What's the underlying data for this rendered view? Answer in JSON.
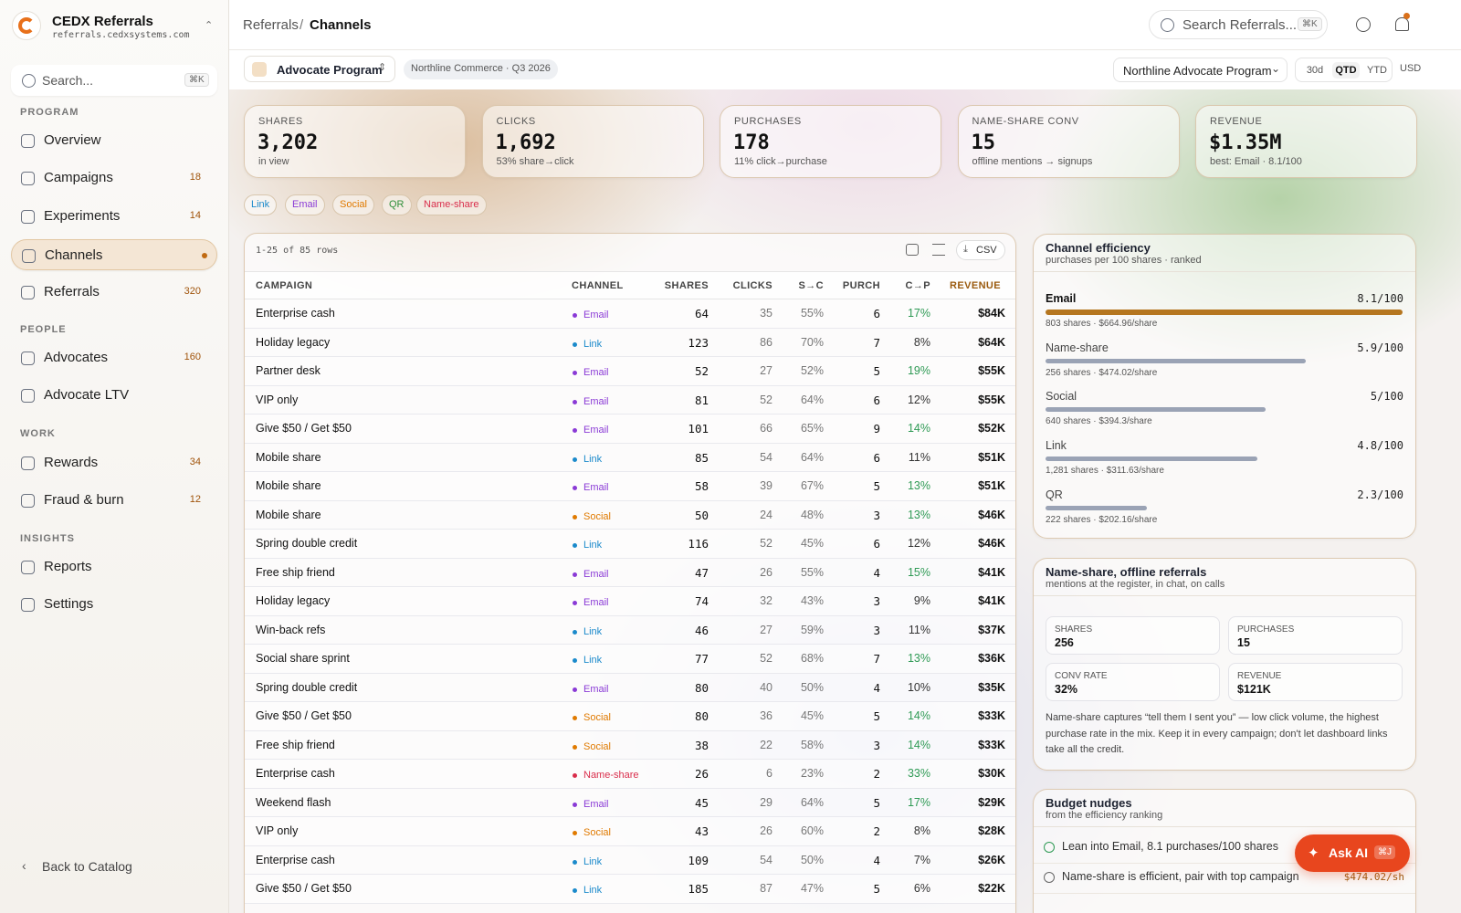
{
  "sidebar": {
    "brand": "CEDX Referrals",
    "domain": "referrals.cedxsystems.com",
    "search": "Search...",
    "search_key": "⌘K",
    "sections": [
      {
        "label": "PROGRAM",
        "items": [
          {
            "label": "Overview"
          },
          {
            "label": "Campaigns",
            "badge": 18
          },
          {
            "label": "Experiments",
            "badge": 14
          },
          {
            "label": "Channels",
            "active": true
          },
          {
            "label": "Referrals",
            "badge": 320
          }
        ]
      },
      {
        "label": "PEOPLE",
        "items": [
          {
            "label": "Advocates",
            "badge": 160
          },
          {
            "label": "Advocate LTV"
          }
        ]
      },
      {
        "label": "WORK",
        "items": [
          {
            "label": "Rewards",
            "badge": 34
          },
          {
            "label": "Fraud & burn",
            "badge": 12
          }
        ]
      },
      {
        "label": "INSIGHTS",
        "items": [
          {
            "label": "Reports"
          },
          {
            "label": "Settings"
          }
        ]
      }
    ],
    "back": "Back to Catalog"
  },
  "header": {
    "breadcrumb": [
      "Referrals",
      "Channels"
    ],
    "separator": "/",
    "search": "Search Referrals...",
    "search_key": "⌘K"
  },
  "toolbar": {
    "program": "Advocate Program",
    "context": "Northline Commerce · Q3 2026",
    "program_select": "Northline Advocate Program",
    "ranges": [
      "30d",
      "QTD",
      "YTD"
    ],
    "active_range": "QTD",
    "currency": "USD"
  },
  "kpis": [
    {
      "label": "SHARES",
      "value": "3,202",
      "sub": "in view"
    },
    {
      "label": "CLICKS",
      "value": "1,692",
      "sub": "53% share→click"
    },
    {
      "label": "PURCHASES",
      "value": "178",
      "sub": "11% click→purchase"
    },
    {
      "label": "NAME-SHARE CONV",
      "value": "15",
      "sub": "offline mentions → signups"
    },
    {
      "label": "REVENUE",
      "value": "$1.35M",
      "sub": "best: Email · 8.1/100"
    }
  ],
  "channels": [
    {
      "name": "Link",
      "color": "#1b8acb"
    },
    {
      "name": "Email",
      "color": "#8a3ad6"
    },
    {
      "name": "Social",
      "color": "#e07a00"
    },
    {
      "name": "QR",
      "color": "#2f8f3a"
    },
    {
      "name": "Name-share",
      "color": "#d92d4b"
    }
  ],
  "table": {
    "count": "1-25 of 85 rows",
    "csv": "CSV",
    "columns": [
      "CAMPAIGN",
      "CHANNEL",
      "SHARES",
      "CLICKS",
      "S→C",
      "PURCH",
      "C→P",
      "REVENUE"
    ],
    "sort_column": "REVENUE",
    "highlight_min": 13,
    "rows": [
      [
        "Enterprise cash",
        "Email",
        64,
        35,
        "55%",
        6,
        "17%",
        "$84K"
      ],
      [
        "Holiday legacy",
        "Link",
        123,
        86,
        "70%",
        7,
        "8%",
        "$64K"
      ],
      [
        "Partner desk",
        "Email",
        52,
        27,
        "52%",
        5,
        "19%",
        "$55K"
      ],
      [
        "VIP only",
        "Email",
        81,
        52,
        "64%",
        6,
        "12%",
        "$55K"
      ],
      [
        "Give $50 / Get $50",
        "Email",
        101,
        66,
        "65%",
        9,
        "14%",
        "$52K"
      ],
      [
        "Mobile share",
        "Link",
        85,
        54,
        "64%",
        6,
        "11%",
        "$51K"
      ],
      [
        "Mobile share",
        "Email",
        58,
        39,
        "67%",
        5,
        "13%",
        "$51K"
      ],
      [
        "Mobile share",
        "Social",
        50,
        24,
        "48%",
        3,
        "13%",
        "$46K"
      ],
      [
        "Spring double credit",
        "Link",
        116,
        52,
        "45%",
        6,
        "12%",
        "$46K"
      ],
      [
        "Free ship friend",
        "Email",
        47,
        26,
        "55%",
        4,
        "15%",
        "$41K"
      ],
      [
        "Holiday legacy",
        "Email",
        74,
        32,
        "43%",
        3,
        "9%",
        "$41K"
      ],
      [
        "Win-back refs",
        "Link",
        46,
        27,
        "59%",
        3,
        "11%",
        "$37K"
      ],
      [
        "Social share sprint",
        "Link",
        77,
        52,
        "68%",
        7,
        "13%",
        "$36K"
      ],
      [
        "Spring double credit",
        "Email",
        80,
        40,
        "50%",
        4,
        "10%",
        "$35K"
      ],
      [
        "Give $50 / Get $50",
        "Social",
        80,
        36,
        "45%",
        5,
        "14%",
        "$33K"
      ],
      [
        "Free ship friend",
        "Social",
        38,
        22,
        "58%",
        3,
        "14%",
        "$33K"
      ],
      [
        "Enterprise cash",
        "Name-share",
        26,
        6,
        "23%",
        2,
        "33%",
        "$30K"
      ],
      [
        "Weekend flash",
        "Email",
        45,
        29,
        "64%",
        5,
        "17%",
        "$29K"
      ],
      [
        "VIP only",
        "Social",
        43,
        26,
        "60%",
        2,
        "8%",
        "$28K"
      ],
      [
        "Enterprise cash",
        "Link",
        109,
        54,
        "50%",
        4,
        "7%",
        "$26K"
      ],
      [
        "Give $50 / Get $50",
        "Link",
        185,
        87,
        "47%",
        5,
        "6%",
        "$22K"
      ]
    ]
  },
  "efficiency": {
    "title": "Channel efficiency",
    "subtitle": "purchases per 100 shares · ranked",
    "top_color": "#b5761f",
    "bar_color": "#9aa3b5",
    "items": [
      {
        "name": "Email",
        "rate": 8.1,
        "rate_label": "8.1/100",
        "detail": "803 shares · $664.96/share"
      },
      {
        "name": "Name-share",
        "rate": 5.9,
        "rate_label": "5.9/100",
        "detail": "256 shares · $474.02/share"
      },
      {
        "name": "Social",
        "rate": 5,
        "rate_label": "5/100",
        "detail": "640 shares · $394.3/share"
      },
      {
        "name": "Link",
        "rate": 4.8,
        "rate_label": "4.8/100",
        "detail": "1,281 shares · $311.63/share"
      },
      {
        "name": "QR",
        "rate": 2.3,
        "rate_label": "2.3/100",
        "detail": "222 shares · $202.16/share"
      }
    ]
  },
  "nameshare": {
    "title": "Name-share, offline referrals",
    "subtitle": "mentions at the register, in chat, on calls",
    "stats": [
      {
        "label": "SHARES",
        "value": "256"
      },
      {
        "label": "PURCHASES",
        "value": "15"
      },
      {
        "label": "CONV RATE",
        "value": "32%"
      },
      {
        "label": "REVENUE",
        "value": "$121K"
      }
    ],
    "note": "Name-share captures “tell them I sent you” — low click volume, the highest purchase rate in the mix. Keep it in every campaign; don't let dashboard links take all the credit."
  },
  "budget": {
    "title": "Budget nudges",
    "subtitle": "from the efficiency ranking",
    "items": [
      {
        "text": "Lean into Email, 8.1 purchases/100 shares"
      },
      {
        "text": "Name-share is efficient, pair with top campaign",
        "value": "$474.02/sh"
      }
    ]
  },
  "ask_ai": {
    "label": "Ask AI",
    "key": "⌘J"
  }
}
